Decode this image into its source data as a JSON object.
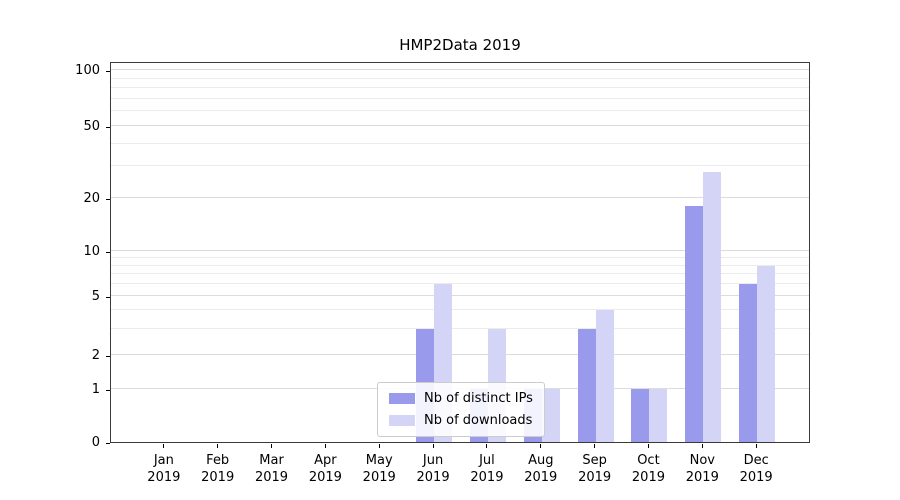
{
  "chart_data": {
    "type": "bar",
    "title": "HMP2Data 2019",
    "xlabel": "",
    "ylabel": "",
    "yscale": "symlog",
    "ylim": [
      0,
      100
    ],
    "grid": true,
    "legend_position": "lower center inside plot",
    "x_months": [
      "Jan",
      "Feb",
      "Mar",
      "Apr",
      "May",
      "Jun",
      "Jul",
      "Aug",
      "Sep",
      "Oct",
      "Nov",
      "Dec"
    ],
    "x_year": "2019",
    "series": [
      {
        "name": "Nb of distinct IPs",
        "color": "#9a9aed",
        "values": [
          0,
          0,
          0,
          0,
          0,
          3,
          1,
          1,
          3,
          1,
          18,
          6
        ]
      },
      {
        "name": "Nb of downloads",
        "color": "#d4d4f7",
        "values": [
          0,
          0,
          0,
          0,
          0,
          6,
          3,
          1,
          4,
          1,
          28,
          8
        ]
      }
    ],
    "yticks": [
      [
        0,
        "0"
      ],
      [
        1,
        "1"
      ],
      [
        2,
        "2"
      ],
      [
        5,
        "5"
      ],
      [
        10,
        "10"
      ],
      [
        20,
        "20"
      ],
      [
        50,
        "50"
      ],
      [
        100,
        "100"
      ]
    ],
    "grid_minor": [
      3,
      4,
      6,
      7,
      8,
      9,
      30,
      40,
      60,
      70,
      80,
      90
    ]
  }
}
